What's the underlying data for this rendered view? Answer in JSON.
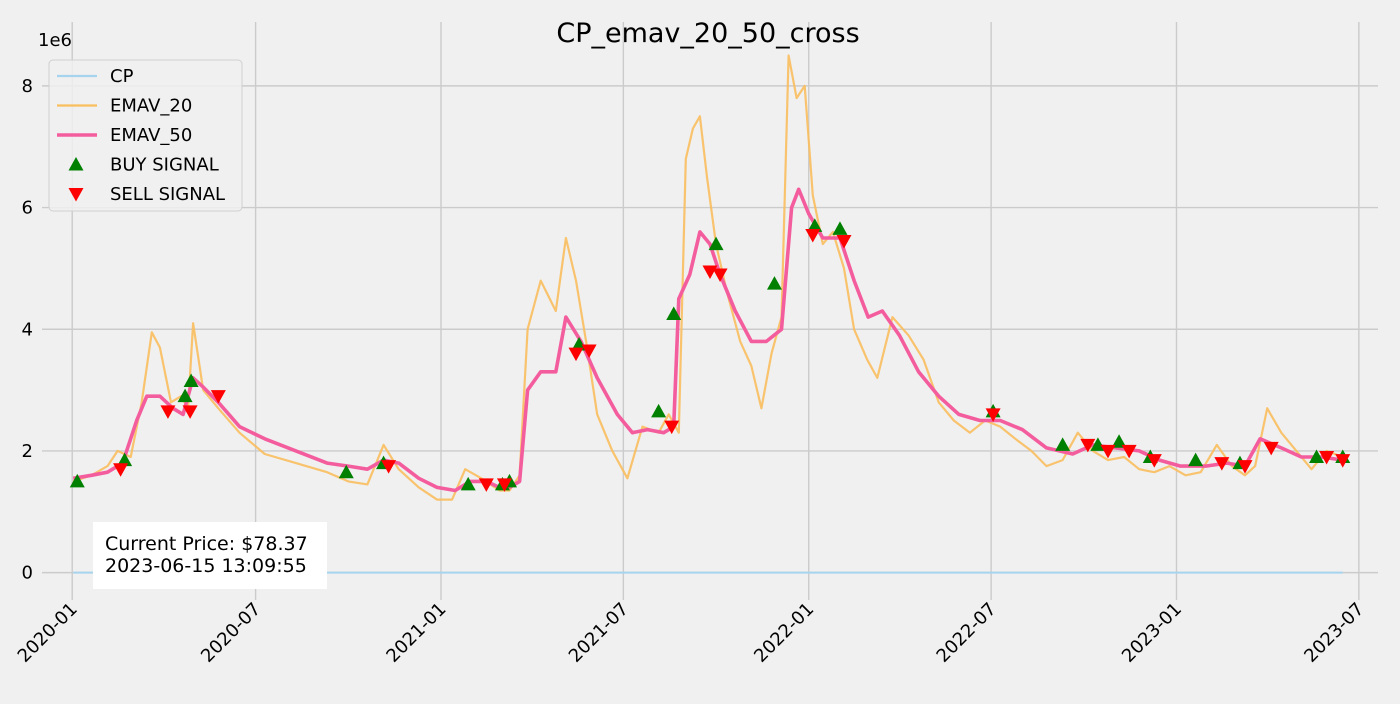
{
  "chart_data": {
    "type": "line",
    "title": "CP_emav_20_50_cross",
    "y_multiplier_label": "1e6",
    "xlim": [
      "2019-12-02",
      "2023-07-20"
    ],
    "ylim": [
      -0.45,
      9.05
    ],
    "x_ticks": [
      "2020-01",
      "2020-07",
      "2021-01",
      "2021-07",
      "2022-01",
      "2022-07",
      "2023-01",
      "2023-07"
    ],
    "y_ticks": [
      0,
      2,
      4,
      6,
      8
    ],
    "grid": true,
    "legend_position": "top-left",
    "legend": [
      {
        "label": "CP",
        "marker": "line",
        "color": "#a6d4ee"
      },
      {
        "label": "EMAV_20",
        "marker": "line",
        "color": "#f9be5e"
      },
      {
        "label": "EMAV_50",
        "marker": "line",
        "color": "#f45d9d"
      },
      {
        "label": "BUY SIGNAL",
        "marker": "triangle-up",
        "color": "#008000"
      },
      {
        "label": "SELL SIGNAL",
        "marker": "triangle-down",
        "color": "#ff0000"
      }
    ],
    "annotation": {
      "price_text": "Current Price: $78.37",
      "time_text": "2023-06-15 13:09:55"
    },
    "series": [
      {
        "name": "CP",
        "color": "#a6d4ee",
        "x": [
          "2020-01-02",
          "2023-06-15"
        ],
        "y": [
          0.0,
          0.0
        ]
      },
      {
        "name": "EMAV_20",
        "color": "#f9be5e",
        "x": [
          "2020-01-02",
          "2020-01-20",
          "2020-02-05",
          "2020-02-15",
          "2020-02-28",
          "2020-03-10",
          "2020-03-20",
          "2020-03-28",
          "2020-04-08",
          "2020-04-18",
          "2020-04-25",
          "2020-04-30",
          "2020-05-10",
          "2020-05-25",
          "2020-06-15",
          "2020-07-10",
          "2020-08-10",
          "2020-09-10",
          "2020-10-01",
          "2020-10-20",
          "2020-11-05",
          "2020-11-20",
          "2020-12-10",
          "2020-12-28",
          "2021-01-12",
          "2021-01-25",
          "2021-02-10",
          "2021-02-28",
          "2021-03-10",
          "2021-03-20",
          "2021-03-28",
          "2021-04-10",
          "2021-04-25",
          "2021-05-05",
          "2021-05-15",
          "2021-05-25",
          "2021-06-05",
          "2021-06-20",
          "2021-07-05",
          "2021-07-20",
          "2021-08-05",
          "2021-08-15",
          "2021-08-25",
          "2021-09-01",
          "2021-09-08",
          "2021-09-15",
          "2021-09-22",
          "2021-10-01",
          "2021-10-12",
          "2021-10-25",
          "2021-11-05",
          "2021-11-15",
          "2021-11-25",
          "2021-12-05",
          "2021-12-12",
          "2021-12-20",
          "2021-12-28",
          "2022-01-05",
          "2022-01-15",
          "2022-01-25",
          "2022-02-05",
          "2022-02-15",
          "2022-02-28",
          "2022-03-10",
          "2022-03-25",
          "2022-04-10",
          "2022-04-25",
          "2022-05-10",
          "2022-05-25",
          "2022-06-10",
          "2022-06-25",
          "2022-07-10",
          "2022-07-25",
          "2022-08-10",
          "2022-08-25",
          "2022-09-10",
          "2022-09-25",
          "2022-10-10",
          "2022-10-25",
          "2022-11-10",
          "2022-11-25",
          "2022-12-10",
          "2022-12-25",
          "2023-01-10",
          "2023-01-25",
          "2023-02-10",
          "2023-02-25",
          "2023-03-10",
          "2023-03-20",
          "2023-04-01",
          "2023-04-15",
          "2023-04-30",
          "2023-05-15",
          "2023-05-30",
          "2023-06-15"
        ],
        "y": [
          1.5,
          1.6,
          1.75,
          2.0,
          1.9,
          2.8,
          3.95,
          3.7,
          2.8,
          2.9,
          2.7,
          4.1,
          3.0,
          2.7,
          2.3,
          1.95,
          1.8,
          1.65,
          1.5,
          1.45,
          2.1,
          1.7,
          1.4,
          1.2,
          1.2,
          1.7,
          1.55,
          1.35,
          1.35,
          1.6,
          4.0,
          4.8,
          4.3,
          5.5,
          4.8,
          3.8,
          2.6,
          2.0,
          1.55,
          2.4,
          2.3,
          2.6,
          2.3,
          6.8,
          7.3,
          7.5,
          6.5,
          5.4,
          4.6,
          3.8,
          3.4,
          2.7,
          3.6,
          4.2,
          8.5,
          7.8,
          8.0,
          6.2,
          5.4,
          5.6,
          5.0,
          4.0,
          3.5,
          3.2,
          4.2,
          3.9,
          3.5,
          2.8,
          2.5,
          2.3,
          2.5,
          2.4,
          2.2,
          2.0,
          1.75,
          1.85,
          2.3,
          2.0,
          1.85,
          1.9,
          1.7,
          1.65,
          1.75,
          1.6,
          1.65,
          2.1,
          1.75,
          1.6,
          1.75,
          2.7,
          2.3,
          2.0,
          1.7,
          2.0,
          1.9
        ]
      },
      {
        "name": "EMAV_50",
        "color": "#f45d9d",
        "x": [
          "2020-01-02",
          "2020-01-20",
          "2020-02-05",
          "2020-02-20",
          "2020-03-05",
          "2020-03-15",
          "2020-03-28",
          "2020-04-10",
          "2020-04-20",
          "2020-04-30",
          "2020-05-10",
          "2020-05-25",
          "2020-06-15",
          "2020-07-10",
          "2020-08-10",
          "2020-09-10",
          "2020-10-01",
          "2020-10-20",
          "2020-11-05",
          "2020-11-20",
          "2020-12-10",
          "2020-12-28",
          "2021-01-15",
          "2021-01-30",
          "2021-02-15",
          "2021-02-28",
          "2021-03-10",
          "2021-03-20",
          "2021-03-28",
          "2021-04-10",
          "2021-04-25",
          "2021-05-05",
          "2021-05-20",
          "2021-06-05",
          "2021-06-25",
          "2021-07-10",
          "2021-07-25",
          "2021-08-10",
          "2021-08-20",
          "2021-08-25",
          "2021-09-05",
          "2021-09-15",
          "2021-09-25",
          "2021-10-05",
          "2021-10-20",
          "2021-11-05",
          "2021-11-20",
          "2021-12-05",
          "2021-12-15",
          "2021-12-22",
          "2022-01-01",
          "2022-01-15",
          "2022-02-01",
          "2022-02-15",
          "2022-03-01",
          "2022-03-15",
          "2022-04-01",
          "2022-04-20",
          "2022-05-10",
          "2022-05-30",
          "2022-06-20",
          "2022-07-10",
          "2022-08-01",
          "2022-08-25",
          "2022-09-20",
          "2022-10-10",
          "2022-11-01",
          "2022-11-25",
          "2022-12-15",
          "2023-01-05",
          "2023-01-30",
          "2023-02-20",
          "2023-03-10",
          "2023-03-25",
          "2023-04-15",
          "2023-05-05",
          "2023-05-25",
          "2023-06-15"
        ],
        "y": [
          1.55,
          1.6,
          1.65,
          1.8,
          2.5,
          2.9,
          2.9,
          2.7,
          2.6,
          3.2,
          3.05,
          2.8,
          2.4,
          2.2,
          2.0,
          1.8,
          1.75,
          1.7,
          1.85,
          1.8,
          1.55,
          1.4,
          1.35,
          1.5,
          1.5,
          1.4,
          1.4,
          1.5,
          3.0,
          3.3,
          3.3,
          4.2,
          3.8,
          3.2,
          2.6,
          2.3,
          2.35,
          2.3,
          2.4,
          4.5,
          4.9,
          5.6,
          5.4,
          4.9,
          4.3,
          3.8,
          3.8,
          4.0,
          6.0,
          6.3,
          5.9,
          5.5,
          5.5,
          4.8,
          4.2,
          4.3,
          3.9,
          3.3,
          2.9,
          2.6,
          2.5,
          2.5,
          2.35,
          2.05,
          1.95,
          2.1,
          2.05,
          2.0,
          1.85,
          1.75,
          1.75,
          1.8,
          1.75,
          2.2,
          2.05,
          1.9,
          1.9,
          1.85
        ]
      }
    ],
    "buy_signals": {
      "x": [
        "2020-01-06",
        "2020-02-22",
        "2020-04-22",
        "2020-04-28",
        "2020-09-29",
        "2020-11-05",
        "2021-01-28",
        "2021-03-03",
        "2021-03-10",
        "2021-05-18",
        "2021-08-05",
        "2021-08-20",
        "2021-10-01",
        "2021-11-28",
        "2022-01-07",
        "2022-02-01",
        "2022-07-03",
        "2022-09-10",
        "2022-10-15",
        "2022-11-05",
        "2022-12-06",
        "2023-01-20",
        "2023-03-05",
        "2023-05-20",
        "2023-06-15"
      ],
      "y": [
        1.5,
        1.85,
        2.9,
        3.15,
        1.65,
        1.8,
        1.45,
        1.45,
        1.5,
        3.75,
        2.65,
        4.25,
        5.4,
        4.75,
        5.7,
        5.65,
        2.65,
        2.1,
        2.1,
        2.15,
        1.9,
        1.85,
        1.8,
        1.9,
        1.9
      ]
    },
    "sell_signals": {
      "x": [
        "2020-02-18",
        "2020-04-05",
        "2020-04-27",
        "2020-05-25",
        "2020-11-10",
        "2021-02-15",
        "2021-03-05",
        "2021-05-15",
        "2021-05-28",
        "2021-08-18",
        "2021-09-25",
        "2021-10-05",
        "2022-01-05",
        "2022-02-05",
        "2022-07-03",
        "2022-10-05",
        "2022-10-25",
        "2022-11-15",
        "2022-12-10",
        "2023-02-15",
        "2023-03-10",
        "2023-04-05",
        "2023-05-30",
        "2023-06-15"
      ],
      "y": [
        1.7,
        2.65,
        2.65,
        2.9,
        1.75,
        1.45,
        1.45,
        3.6,
        3.65,
        2.4,
        4.95,
        4.9,
        5.55,
        5.45,
        2.6,
        2.1,
        2.0,
        2.0,
        1.85,
        1.8,
        1.75,
        2.05,
        1.9,
        1.85
      ]
    }
  }
}
